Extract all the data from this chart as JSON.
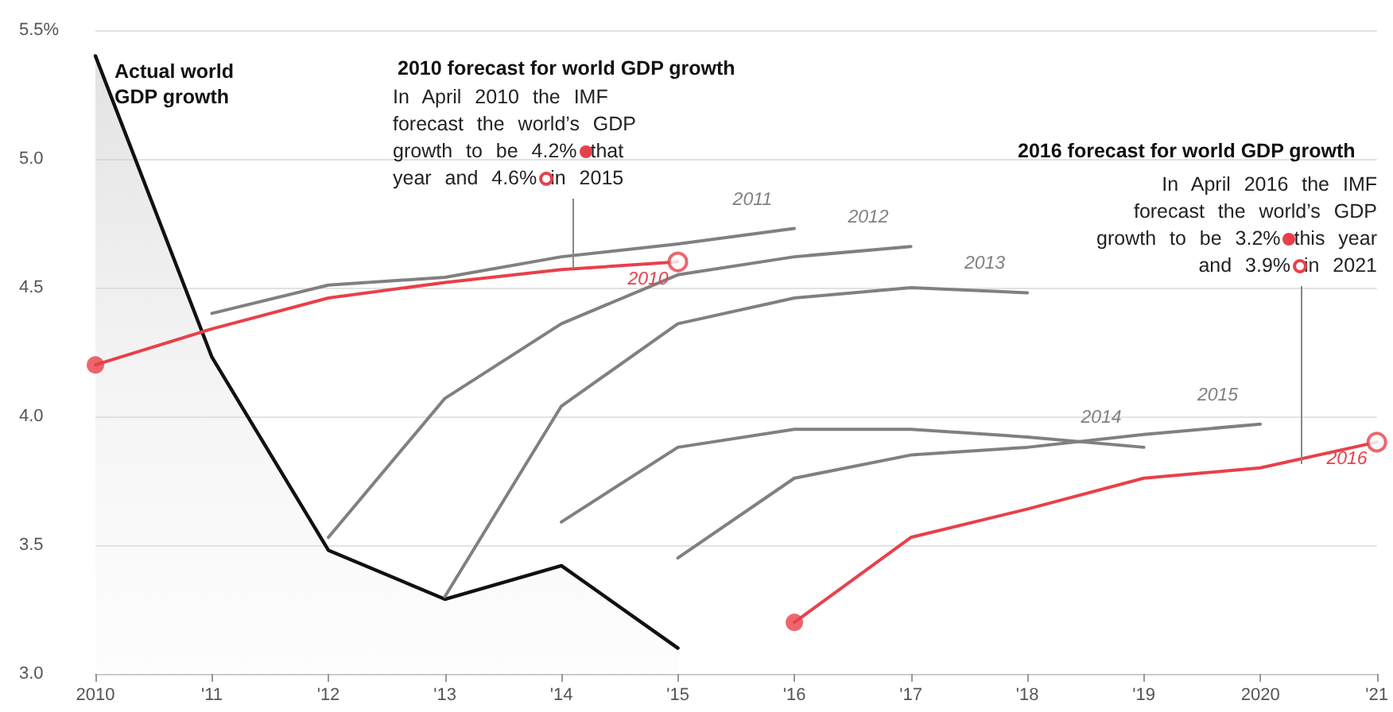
{
  "chart_data": {
    "type": "line",
    "series": [
      {
        "name": "Actual world GDP growth",
        "type": "area",
        "color": "#111111",
        "x": [
          2010,
          2011,
          2012,
          2013,
          2014,
          2015
        ],
        "values": [
          5.4,
          4.23,
          3.48,
          3.29,
          3.42,
          3.1
        ]
      },
      {
        "name": "2011",
        "color": "#808080",
        "x": [
          2011,
          2012,
          2013,
          2014,
          2015,
          2016
        ],
        "values": [
          4.4,
          4.51,
          4.54,
          4.62,
          4.67,
          4.73
        ]
      },
      {
        "name": "2012",
        "color": "#808080",
        "x": [
          2012,
          2013,
          2014,
          2015,
          2016,
          2017
        ],
        "values": [
          3.53,
          4.07,
          4.36,
          4.55,
          4.62,
          4.66
        ]
      },
      {
        "name": "2013",
        "color": "#808080",
        "x": [
          2013,
          2014,
          2015,
          2016,
          2017,
          2018
        ],
        "values": [
          3.3,
          4.04,
          4.36,
          4.46,
          4.5,
          4.48
        ]
      },
      {
        "name": "2014",
        "color": "#808080",
        "x": [
          2014,
          2015,
          2016,
          2017,
          2018,
          2019
        ],
        "values": [
          3.59,
          3.88,
          3.95,
          3.95,
          3.92,
          3.88
        ]
      },
      {
        "name": "2015",
        "color": "#808080",
        "x": [
          2015,
          2016,
          2017,
          2018,
          2019,
          2020
        ],
        "values": [
          3.45,
          3.76,
          3.85,
          3.88,
          3.93,
          3.97
        ]
      },
      {
        "name": "2010",
        "color": "#e8404a",
        "x": [
          2010,
          2011,
          2012,
          2013,
          2014,
          2015
        ],
        "values": [
          4.2,
          4.34,
          4.46,
          4.52,
          4.57,
          4.6
        ]
      },
      {
        "name": "2016",
        "color": "#e8404a",
        "x": [
          2016,
          2017,
          2018,
          2019,
          2020,
          2021
        ],
        "values": [
          3.2,
          3.53,
          3.64,
          3.76,
          3.8,
          3.9
        ]
      },
      {
        "type": "scatter",
        "marker": "circle",
        "color": "#e8404a",
        "x": [
          2010,
          2016
        ],
        "values": [
          4.2,
          3.2
        ]
      },
      {
        "type": "scatter",
        "marker": "circle",
        "color": "#e8404a",
        "x": [
          2015,
          2021
        ],
        "values": [
          4.6,
          3.9
        ]
      }
    ],
    "xlim": [
      2010,
      2021
    ],
    "xticks": [
      {
        "value": 2010,
        "label": "2010"
      },
      {
        "value": 2011,
        "label": "'11"
      },
      {
        "value": 2012,
        "label": "'12"
      },
      {
        "value": 2013,
        "label": "'13"
      },
      {
        "value": 2014,
        "label": "'14"
      },
      {
        "value": 2015,
        "label": "'15"
      },
      {
        "value": 2016,
        "label": "'16"
      },
      {
        "value": 2017,
        "label": "'17"
      },
      {
        "value": 2018,
        "label": "'18"
      },
      {
        "value": 2019,
        "label": "'19"
      },
      {
        "value": 2020,
        "label": "2020"
      },
      {
        "value": 2021,
        "label": "'21"
      }
    ],
    "ylim": [
      3,
      5.5
    ],
    "yticks": [
      {
        "value": 3,
        "label": "3.0"
      },
      {
        "value": 3.5,
        "label": "3.5"
      },
      {
        "value": 4,
        "label": "4.0"
      },
      {
        "value": 4.5,
        "label": "4.5"
      },
      {
        "value": 5,
        "label": "5.0"
      },
      {
        "value": 5.5,
        "label": "5.5%"
      }
    ],
    "grid": "y",
    "annotations": [
      "2010 forecast for world GDP growth",
      "In April 2010 the IMF forecast the world’s GDP growth to be 4.2% that year and 4.6% in 2015",
      "2016 forecast for world GDP growth",
      "In April 2016 the IMF forecast the world’s GDP growth to be 3.2% this year and 3.9% in 2021"
    ]
  }
}
